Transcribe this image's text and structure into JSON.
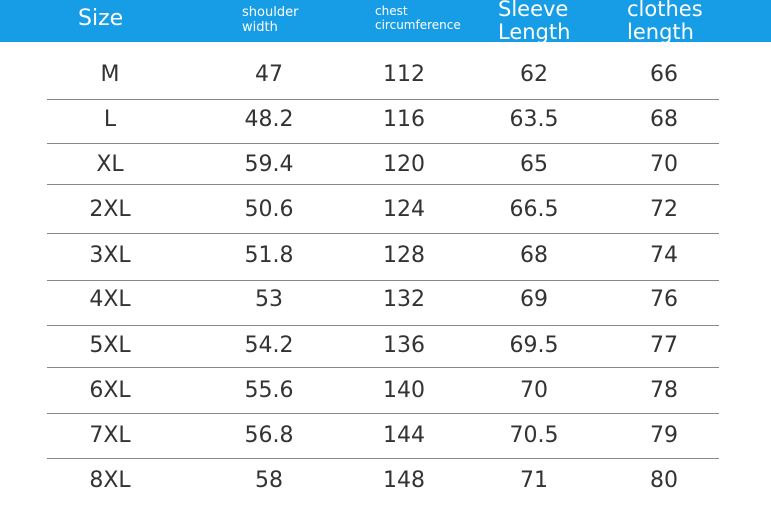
{
  "table": {
    "header": [
      "Size",
      "shoulder width",
      "chest circumference",
      "Sleeve Length",
      "clothes length"
    ],
    "rows": [
      [
        "M",
        "47",
        "112",
        "62",
        "66"
      ],
      [
        "L",
        "48.2",
        "116",
        "63.5",
        "68"
      ],
      [
        "XL",
        "59.4",
        "120",
        "65",
        "70"
      ],
      [
        "2XL",
        "50.6",
        "124",
        "66.5",
        "72"
      ],
      [
        "3XL",
        "51.8",
        "128",
        "68",
        "74"
      ],
      [
        "4XL",
        "53",
        "132",
        "69",
        "76"
      ],
      [
        "5XL",
        "54.2",
        "136",
        "69.5",
        "77"
      ],
      [
        "6XL",
        "55.6",
        "140",
        "70",
        "78"
      ],
      [
        "7XL",
        "56.8",
        "144",
        "70.5",
        "79"
      ],
      [
        "8XL",
        "58",
        "148",
        "71",
        "80"
      ]
    ]
  }
}
